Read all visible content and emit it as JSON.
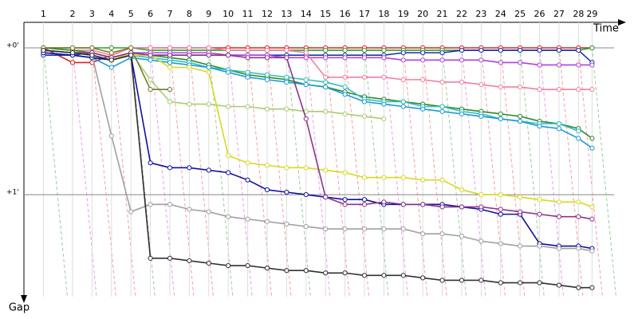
{
  "chart_data": {
    "type": "line",
    "x_label": "Time",
    "y_label": "Gap",
    "xlim": [
      0,
      31.15
    ],
    "ylim": [
      -10.43,
      104.3
    ],
    "x": [
      1,
      2.5,
      3.5,
      4.5,
      5.5,
      6.5,
      7.5,
      8.5,
      9.5,
      10.5,
      11.5,
      12.5,
      13.5,
      14.5,
      15.5,
      16.5,
      17.5,
      18.5,
      19.5,
      20.5,
      21.5,
      22.5,
      23.5,
      24.5,
      25.5,
      26.5,
      27.5,
      28.5,
      29.2
    ],
    "xticks": [
      {
        "value": 1,
        "label": "1"
      },
      {
        "value": 2.5,
        "label": "2"
      },
      {
        "value": 3.5,
        "label": "3"
      },
      {
        "value": 4.5,
        "label": "4"
      },
      {
        "value": 5.5,
        "label": "5"
      },
      {
        "value": 6.5,
        "label": "6"
      },
      {
        "value": 7.5,
        "label": "7"
      },
      {
        "value": 8.5,
        "label": "8"
      },
      {
        "value": 9.5,
        "label": "9"
      },
      {
        "value": 10.5,
        "label": "10"
      },
      {
        "value": 11.5,
        "label": "11"
      },
      {
        "value": 12.5,
        "label": "12"
      },
      {
        "value": 13.5,
        "label": "13"
      },
      {
        "value": 14.5,
        "label": "14"
      },
      {
        "value": 15.5,
        "label": "15"
      },
      {
        "value": 16.5,
        "label": "16"
      },
      {
        "value": 17.5,
        "label": "17"
      },
      {
        "value": 18.5,
        "label": "18"
      },
      {
        "value": 19.5,
        "label": "19"
      },
      {
        "value": 20.5,
        "label": "20"
      },
      {
        "value": 21.5,
        "label": "21"
      },
      {
        "value": 22.5,
        "label": "22"
      },
      {
        "value": 23.5,
        "label": "23"
      },
      {
        "value": 24.5,
        "label": "24"
      },
      {
        "value": 25.5,
        "label": "25"
      },
      {
        "value": 26.5,
        "label": "26"
      },
      {
        "value": 27.5,
        "label": "27"
      },
      {
        "value": 28.5,
        "label": "28"
      },
      {
        "value": 29.2,
        "label": "29"
      }
    ],
    "yticks": [
      {
        "value": 0,
        "label": "+0'"
      },
      {
        "value": 60,
        "label": "+1'"
      }
    ],
    "series": [
      {
        "color": "#e02020",
        "values": [
          0,
          6,
          6,
          3,
          0,
          0,
          0,
          0,
          0,
          0,
          0,
          0,
          0,
          0,
          0,
          0,
          0,
          0,
          0,
          0,
          0,
          0,
          0,
          0,
          0,
          0,
          0,
          0,
          0
        ]
      },
      {
        "color": "#2ca02c",
        "values": [
          0,
          0,
          0,
          0,
          0,
          1,
          1,
          1,
          1,
          1,
          1,
          1,
          1,
          1,
          1,
          1,
          1,
          1,
          1,
          1,
          1,
          1,
          1,
          1,
          1,
          1,
          1,
          1,
          0
        ]
      },
      {
        "color": "#1a2fb0",
        "values": [
          3,
          3,
          2,
          4,
          2,
          3,
          3,
          3,
          3,
          3,
          3,
          3,
          3,
          3,
          3,
          3,
          3,
          3,
          2,
          2,
          2,
          1,
          1,
          1,
          1,
          1,
          1,
          1,
          6
        ]
      },
      {
        "color": "#b040e0",
        "values": [
          1,
          2,
          2,
          4,
          2,
          2,
          2,
          2,
          2,
          3,
          3,
          3,
          4,
          4,
          4,
          4,
          4,
          4,
          5,
          5,
          5,
          5,
          5,
          6,
          6,
          7,
          7,
          7,
          7
        ]
      },
      {
        "color": "#f080a0",
        "values": [
          0,
          1,
          1,
          3,
          0,
          0,
          0,
          0,
          0,
          1,
          1,
          1,
          1,
          2,
          12,
          12,
          12,
          12,
          13,
          13,
          14,
          14,
          15,
          16,
          16,
          17,
          17,
          17,
          17
        ]
      },
      {
        "color": "#2a8a2a",
        "values": [
          0,
          1,
          2,
          4,
          2,
          3,
          4,
          5,
          7,
          9,
          11,
          12,
          13,
          15,
          16,
          18,
          20,
          21,
          22,
          23,
          24,
          25,
          26,
          27,
          28,
          30,
          31,
          33,
          37
        ]
      },
      {
        "color": "#30c0c0",
        "values": [
          1,
          2,
          3,
          5,
          3,
          4,
          5,
          6,
          8,
          9,
          10,
          11,
          12,
          13,
          14,
          16,
          21,
          22,
          22,
          24,
          24,
          26,
          27,
          29,
          30,
          31,
          31,
          34,
          null
        ]
      },
      {
        "color": "#1e9ad6",
        "values": [
          2,
          3,
          4,
          8,
          4,
          5,
          6,
          7,
          8,
          10,
          12,
          13,
          14,
          15,
          16,
          19,
          22,
          23,
          24,
          25,
          26,
          27,
          28,
          29,
          30,
          32,
          33,
          37,
          41
        ]
      },
      {
        "color": "#a8cc70",
        "values": [
          1,
          2,
          2,
          4,
          2,
          13,
          22,
          23,
          23,
          24,
          24,
          25,
          25,
          26,
          26,
          27,
          28,
          29,
          null,
          null,
          null,
          null,
          null,
          null,
          null,
          null,
          null,
          null,
          null
        ]
      },
      {
        "color": "#7a7a30",
        "values": [
          0,
          0,
          0,
          2,
          0,
          17,
          17,
          null,
          null,
          null,
          null,
          null,
          null,
          null,
          null,
          null,
          null,
          null,
          null,
          null,
          null,
          null,
          null,
          null,
          null,
          null,
          null,
          null,
          null
        ]
      },
      {
        "color": "#d8d820",
        "values": [
          1,
          2,
          2,
          4,
          3,
          3,
          8,
          8,
          10,
          44,
          47,
          48,
          49,
          49,
          50,
          51,
          53,
          53,
          53,
          54,
          54,
          58,
          60,
          60,
          61,
          62,
          63,
          63,
          65
        ]
      },
      {
        "color": "#1010a0",
        "values": [
          2,
          3,
          4,
          5,
          3,
          47,
          49,
          49,
          50,
          51,
          54,
          58,
          59,
          60,
          61,
          62,
          62,
          64,
          64,
          64,
          64,
          65,
          66,
          68,
          68,
          80,
          81,
          81,
          82
        ]
      },
      {
        "color": "#903090",
        "values": [
          1,
          2,
          2,
          4,
          2,
          3,
          3,
          3,
          3,
          3,
          4,
          4,
          4,
          29,
          61,
          64,
          64,
          63,
          64,
          64,
          65,
          65,
          65,
          66,
          67,
          68,
          69,
          69,
          70
        ]
      },
      {
        "color": "#a0a0a0",
        "values": [
          1,
          2,
          3,
          36,
          67,
          64,
          64,
          66,
          67,
          69,
          70,
          71,
          72,
          73,
          74,
          74,
          74,
          74,
          74,
          76,
          76,
          77,
          79,
          80,
          81,
          81,
          82,
          82,
          83
        ]
      },
      {
        "color": "#303030",
        "values": [
          1,
          2,
          3,
          5,
          3,
          86,
          86,
          87,
          88,
          89,
          89,
          90,
          91,
          91,
          92,
          92,
          93,
          93,
          93,
          94,
          95,
          95,
          95,
          96,
          96,
          96,
          97,
          98,
          98
        ]
      }
    ]
  }
}
